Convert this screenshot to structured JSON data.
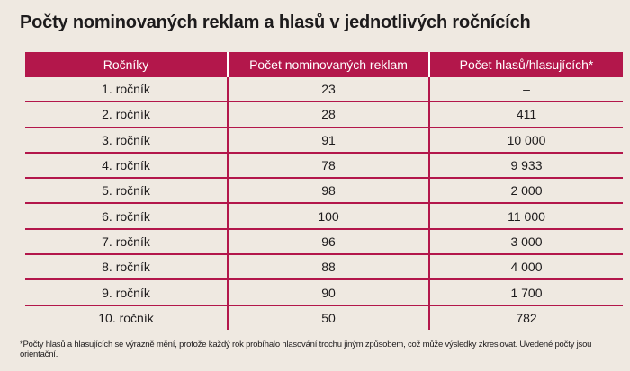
{
  "title": "Počty nominovaných reklam a hlasů v jednotlivých ročnících",
  "table": {
    "headers": [
      "Ročníky",
      "Počet nominovaných reklam",
      "Počet hlasů/hlasujících*"
    ],
    "rows": [
      [
        "1. ročník",
        "23",
        "–"
      ],
      [
        "2. ročník",
        "28",
        "411"
      ],
      [
        "3. ročník",
        "91",
        "10 000"
      ],
      [
        "4. ročník",
        "78",
        "9 933"
      ],
      [
        "5. ročník",
        "98",
        "2 000"
      ],
      [
        "6. ročník",
        "100",
        "11 000"
      ],
      [
        "7. ročník",
        "96",
        "3 000"
      ],
      [
        "8. ročník",
        "88",
        "4 000"
      ],
      [
        "9. ročník",
        "90",
        "1 700"
      ],
      [
        "10. ročník",
        "50",
        "782"
      ]
    ]
  },
  "footnote": "*Počty hlasů a hlasujících se výrazně mění, protože každý rok probíhalo hlasování trochu jiným způsobem, což může výsledky zkreslovat. Uvedené počty jsou orientační."
}
